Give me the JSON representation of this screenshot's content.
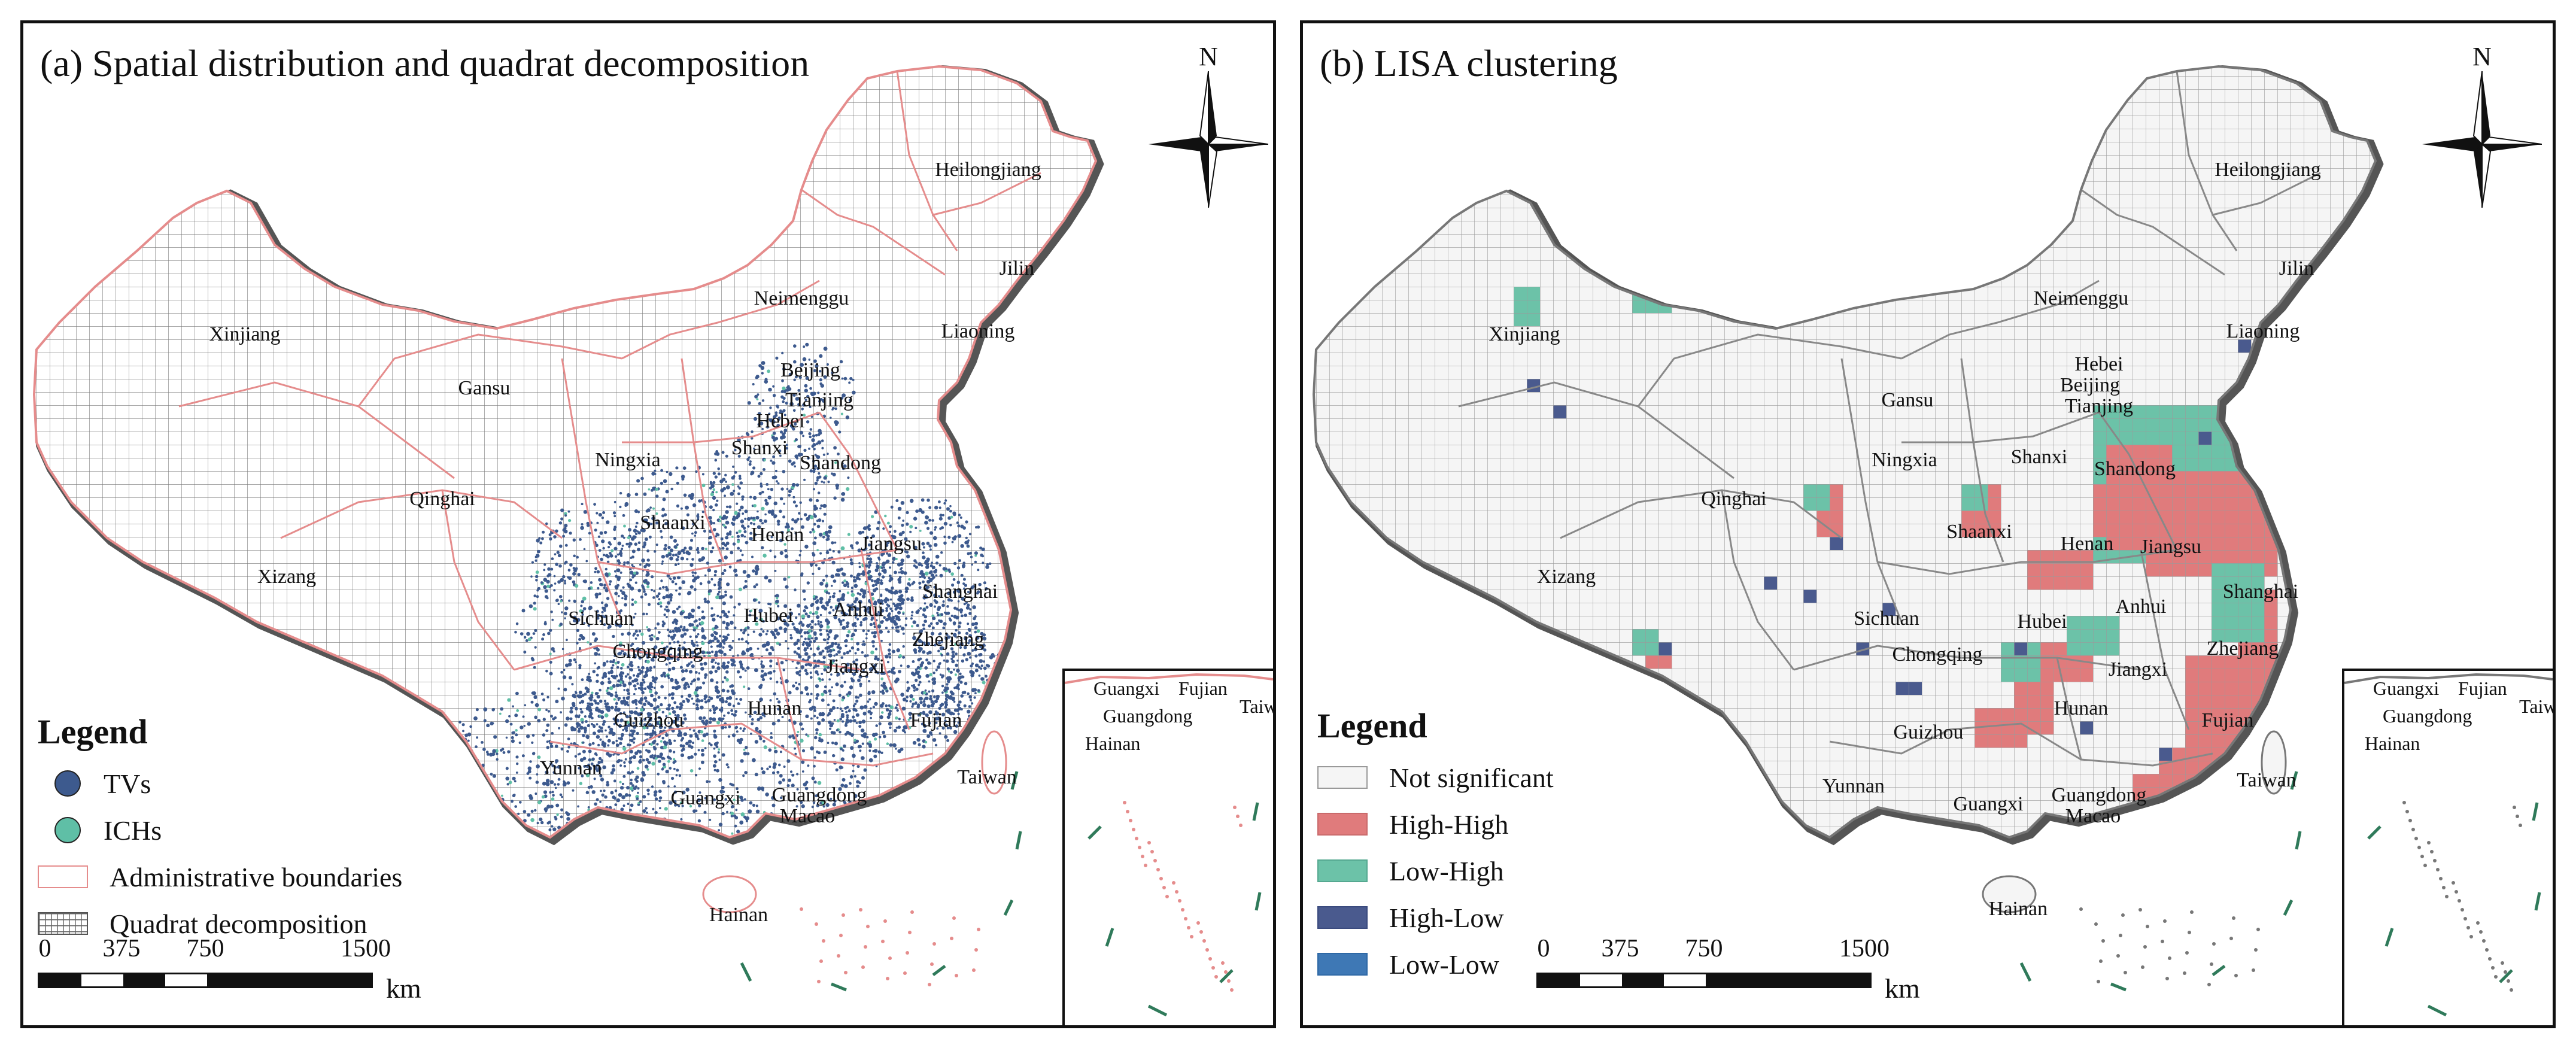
{
  "colors": {
    "tv": "#3d5a8e",
    "ich": "#5fbfa6",
    "boundary_a": "#e58c8c",
    "boundary_b": "#777777",
    "grid": "#7a7a7a",
    "not_significant": "#f5f5f5",
    "high_high": "#e07b7c",
    "low_high": "#6cc2a8",
    "high_low": "#4a5a8e",
    "low_low": "#3e78b5",
    "coast_shadow": "#555555"
  },
  "panel_a": {
    "title": "(a) Spatial distribution and quadrat decomposition",
    "compass_label": "N",
    "legend": {
      "title": "Legend",
      "items": [
        {
          "label": "TVs",
          "swatch": "tv-circle"
        },
        {
          "label": "ICHs",
          "swatch": "ich-circle"
        },
        {
          "label": "Administrative boundaries",
          "swatch": "boundary-rect"
        },
        {
          "label": "Quadrat decomposition",
          "swatch": "grid-rect"
        }
      ]
    },
    "scalebar": {
      "ticks": [
        "0",
        "375",
        "750",
        "1500"
      ],
      "unit": "km"
    },
    "provinces": [
      "Heilongjiang",
      "Jilin",
      "Liaoning",
      "Neimenggu",
      "Xinjiang",
      "Gansu",
      "Beijing",
      "Tianjing",
      "Hebei",
      "Ningxia",
      "Shanxi",
      "Shandong",
      "Qinghai",
      "Shaanxi",
      "Henan",
      "Jiangsu",
      "Xizang",
      "Shanghai",
      "Sichuan",
      "Anhui",
      "Hubei",
      "Chongqing",
      "Zhejiang",
      "Jiangxi",
      "Hunan",
      "Guizhou",
      "Fujian",
      "Yunnan",
      "Taiwan",
      "Guangxi",
      "Guangdong",
      "Macao",
      "Hainan"
    ],
    "inset_labels": [
      "Guangxi",
      "Fujian",
      "Taiwan",
      "Guangdong",
      "Hainan"
    ]
  },
  "panel_b": {
    "title": "(b) LISA clustering",
    "compass_label": "N",
    "legend": {
      "title": "Legend",
      "items": [
        {
          "label": "Not significant",
          "swatch": "not_significant"
        },
        {
          "label": "High-High",
          "swatch": "high_high"
        },
        {
          "label": "Low-High",
          "swatch": "low_high"
        },
        {
          "label": "High-Low",
          "swatch": "high_low"
        },
        {
          "label": "Low-Low",
          "swatch": "low_low"
        }
      ]
    },
    "scalebar": {
      "ticks": [
        "0",
        "375",
        "750",
        "1500"
      ],
      "unit": "km"
    },
    "provinces": [
      "Heilongjiang",
      "Jilin",
      "Neimenggu",
      "Liaoning",
      "Xinjiang",
      "Hebei",
      "Beijing",
      "Tianjing",
      "Gansu",
      "Ningxia",
      "Shanxi",
      "Shandong",
      "Qinghai",
      "Shaanxi",
      "Henan",
      "Jiangsu",
      "Xizang",
      "Shanghai",
      "Hubei",
      "Sichuan",
      "Anhui",
      "Zhejiang",
      "Chongqing",
      "Jiangxi",
      "Hunan",
      "Guizhou",
      "Fujian",
      "Yunnan",
      "Taiwan",
      "Guangxi",
      "Guangdong",
      "Macao",
      "Hainan"
    ],
    "inset_labels": [
      "Guangxi",
      "Fujian",
      "Taiwan",
      "Guangdong",
      "Hainan"
    ]
  }
}
